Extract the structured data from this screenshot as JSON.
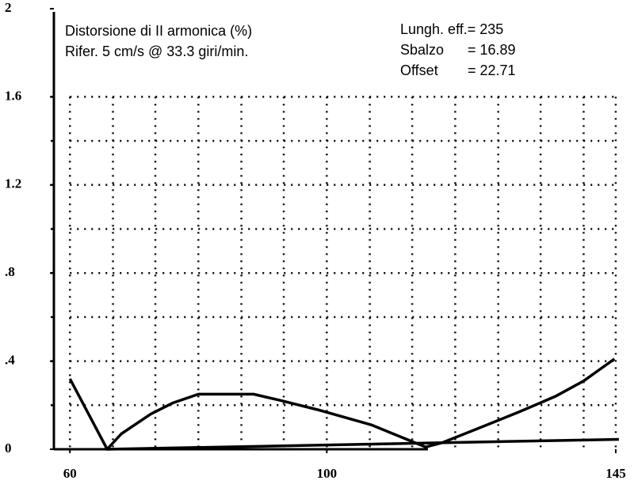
{
  "chart_data": {
    "type": "line",
    "annotations": [
      "Distorsione di II armonica (%)",
      "Rifer. 5 cm/s @ 33.3 giri/min."
    ],
    "params": [
      [
        "Lungh. eff.= 235"
      ],
      [
        "Sbalzo",
        "= 16.89"
      ],
      [
        "Offset",
        "= 22.71"
      ]
    ],
    "xlim": [
      57.5,
      145.5
    ],
    "ylim": [
      0,
      2
    ],
    "xticks": [
      60,
      100,
      145
    ],
    "yticks": [
      0,
      {
        "value": 0.4,
        "label": ".4"
      },
      {
        "value": 0.8,
        "label": ".8"
      },
      1.2,
      1.6,
      2
    ],
    "xgrid": [
      60,
      66.7,
      73.3,
      80,
      86.7,
      93.3,
      100,
      106.7,
      113.3,
      120,
      126.7,
      133.3,
      140,
      145
    ],
    "ygrid": [
      0.2,
      0.4,
      0.6,
      0.8,
      1.0,
      1.2,
      1.4,
      1.6
    ],
    "grid": true,
    "series": [
      {
        "color": "#000000",
        "x": [
          60,
          65.8,
          68,
          72.6,
          76,
          80,
          88.6,
          93,
          98.5,
          107,
          115.4,
          118,
          123.2,
          130,
          135.6,
          140,
          144.8
        ],
        "values": [
          0.32,
          0,
          0.07,
          0.16,
          0.21,
          0.25,
          0.25,
          0.22,
          0.18,
          0.11,
          0.01,
          0.03,
          0.09,
          0.17,
          0.24,
          0.31,
          0.41
        ]
      },
      {
        "color": "#000000",
        "x": [
          65.8,
          145.5
        ],
        "values": [
          0,
          0.045
        ]
      }
    ]
  }
}
